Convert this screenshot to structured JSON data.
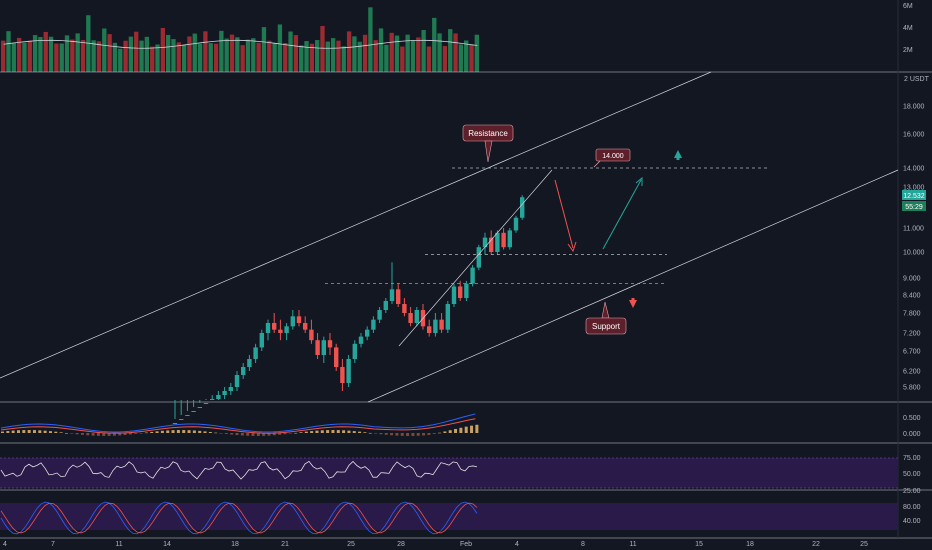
{
  "chart_data": {
    "type": "candlestick",
    "currency": "2 USDT",
    "volume_axis": [
      "6M",
      "4M",
      "2M"
    ],
    "price_axis": [
      "18.000",
      "16.000",
      "14.000",
      "13.000",
      "11.000",
      "10.000",
      "9.000",
      "8.400",
      "7.800",
      "7.200",
      "6.700",
      "6.200",
      "5.800"
    ],
    "macd_axis": [
      "0.500",
      "0.000"
    ],
    "rsi_axis": [
      "75.00",
      "50.00",
      "25.00"
    ],
    "stoch_axis": [
      "80.00",
      "40.00"
    ],
    "x_axis_labels": [
      "4",
      "7",
      "11",
      "14",
      "18",
      "21",
      "25",
      "28",
      "Feb",
      "4",
      "8",
      "11",
      "15",
      "18",
      "22",
      "25"
    ],
    "last_price": "12.532",
    "countdown": "55:29",
    "annotations": {
      "resistance_label": "Resistance",
      "support_label": "Support",
      "target_label": "14.000"
    },
    "candles": [
      {
        "o": 4.8,
        "h": 5.0,
        "l": 4.7,
        "c": 4.9
      },
      {
        "o": 4.9,
        "h": 5.1,
        "l": 4.8,
        "c": 5.0
      },
      {
        "o": 5.0,
        "h": 5.2,
        "l": 4.9,
        "c": 5.1
      },
      {
        "o": 5.1,
        "h": 5.3,
        "l": 5.0,
        "c": 5.2
      },
      {
        "o": 5.2,
        "h": 5.4,
        "l": 5.1,
        "c": 5.3
      },
      {
        "o": 5.3,
        "h": 5.5,
        "l": 5.2,
        "c": 5.4
      },
      {
        "o": 5.4,
        "h": 5.6,
        "l": 5.3,
        "c": 5.5
      },
      {
        "o": 5.5,
        "h": 5.7,
        "l": 5.4,
        "c": 5.6
      },
      {
        "o": 5.6,
        "h": 5.8,
        "l": 5.5,
        "c": 5.7
      },
      {
        "o": 5.7,
        "h": 5.9,
        "l": 5.6,
        "c": 5.8
      },
      {
        "o": 5.8,
        "h": 6.2,
        "l": 5.7,
        "c": 6.1
      },
      {
        "o": 6.1,
        "h": 6.4,
        "l": 6.0,
        "c": 6.3
      },
      {
        "o": 6.3,
        "h": 6.6,
        "l": 6.2,
        "c": 6.5
      },
      {
        "o": 6.5,
        "h": 6.9,
        "l": 6.4,
        "c": 6.8
      },
      {
        "o": 6.8,
        "h": 7.3,
        "l": 6.7,
        "c": 7.2
      },
      {
        "o": 7.2,
        "h": 7.6,
        "l": 7.0,
        "c": 7.5
      },
      {
        "o": 7.5,
        "h": 7.8,
        "l": 7.2,
        "c": 7.3
      },
      {
        "o": 7.3,
        "h": 7.6,
        "l": 7.0,
        "c": 7.2
      },
      {
        "o": 7.2,
        "h": 7.5,
        "l": 7.0,
        "c": 7.4
      },
      {
        "o": 7.4,
        "h": 7.9,
        "l": 7.3,
        "c": 7.7
      },
      {
        "o": 7.7,
        "h": 7.9,
        "l": 7.4,
        "c": 7.5
      },
      {
        "o": 7.5,
        "h": 7.7,
        "l": 7.2,
        "c": 7.3
      },
      {
        "o": 7.3,
        "h": 7.6,
        "l": 6.9,
        "c": 7.0
      },
      {
        "o": 7.0,
        "h": 7.2,
        "l": 6.5,
        "c": 6.6
      },
      {
        "o": 6.6,
        "h": 7.1,
        "l": 6.4,
        "c": 7.0
      },
      {
        "o": 7.0,
        "h": 7.2,
        "l": 6.6,
        "c": 6.8
      },
      {
        "o": 6.8,
        "h": 6.9,
        "l": 6.2,
        "c": 6.3
      },
      {
        "o": 6.3,
        "h": 6.5,
        "l": 5.7,
        "c": 5.9
      },
      {
        "o": 5.9,
        "h": 6.6,
        "l": 5.8,
        "c": 6.5
      },
      {
        "o": 6.5,
        "h": 7.0,
        "l": 6.4,
        "c": 6.9
      },
      {
        "o": 6.9,
        "h": 7.2,
        "l": 6.8,
        "c": 7.1
      },
      {
        "o": 7.1,
        "h": 7.4,
        "l": 7.0,
        "c": 7.3
      },
      {
        "o": 7.3,
        "h": 7.7,
        "l": 7.2,
        "c": 7.6
      },
      {
        "o": 7.6,
        "h": 8.0,
        "l": 7.5,
        "c": 7.9
      },
      {
        "o": 7.9,
        "h": 8.3,
        "l": 7.8,
        "c": 8.2
      },
      {
        "o": 8.2,
        "h": 9.6,
        "l": 8.1,
        "c": 8.6
      },
      {
        "o": 8.6,
        "h": 8.8,
        "l": 8.0,
        "c": 8.1
      },
      {
        "o": 8.1,
        "h": 8.3,
        "l": 7.7,
        "c": 7.8
      },
      {
        "o": 7.8,
        "h": 8.0,
        "l": 7.4,
        "c": 7.5
      },
      {
        "o": 7.5,
        "h": 8.0,
        "l": 7.4,
        "c": 7.9
      },
      {
        "o": 7.9,
        "h": 8.1,
        "l": 7.3,
        "c": 7.4
      },
      {
        "o": 7.4,
        "h": 7.6,
        "l": 7.1,
        "c": 7.2
      },
      {
        "o": 7.2,
        "h": 7.8,
        "l": 7.1,
        "c": 7.6
      },
      {
        "o": 7.6,
        "h": 7.8,
        "l": 7.2,
        "c": 7.3
      },
      {
        "o": 7.3,
        "h": 8.2,
        "l": 7.2,
        "c": 8.1
      },
      {
        "o": 8.1,
        "h": 8.8,
        "l": 8.0,
        "c": 8.7
      },
      {
        "o": 8.7,
        "h": 8.9,
        "l": 8.2,
        "c": 8.3
      },
      {
        "o": 8.3,
        "h": 8.9,
        "l": 8.2,
        "c": 8.8
      },
      {
        "o": 8.8,
        "h": 9.5,
        "l": 8.7,
        "c": 9.4
      },
      {
        "o": 9.4,
        "h": 10.3,
        "l": 9.3,
        "c": 10.2
      },
      {
        "o": 10.2,
        "h": 10.8,
        "l": 9.9,
        "c": 10.6
      },
      {
        "o": 10.6,
        "h": 10.9,
        "l": 9.9,
        "c": 10.0
      },
      {
        "o": 10.0,
        "h": 10.9,
        "l": 9.9,
        "c": 10.8
      },
      {
        "o": 10.8,
        "h": 11.0,
        "l": 10.1,
        "c": 10.2
      },
      {
        "o": 10.2,
        "h": 11.0,
        "l": 10.1,
        "c": 10.9
      },
      {
        "o": 10.9,
        "h": 11.6,
        "l": 10.8,
        "c": 11.5
      },
      {
        "o": 11.5,
        "h": 12.6,
        "l": 11.4,
        "c": 12.5
      }
    ],
    "channel_upper": [
      {
        "bar": 0,
        "p": 6.3
      },
      {
        "bar": 66,
        "p": 14.0
      },
      {
        "bar": 144,
        "p": 20.6
      }
    ],
    "channel_lower": [
      {
        "bar": 74,
        "p": 5.8
      },
      {
        "bar": 180,
        "p": 13.4
      }
    ],
    "resistance_level": 14.0,
    "support_levels": [
      9.9,
      8.8
    ],
    "rsi_band": [
      25,
      75
    ],
    "stoch_band": [
      20,
      80
    ]
  }
}
